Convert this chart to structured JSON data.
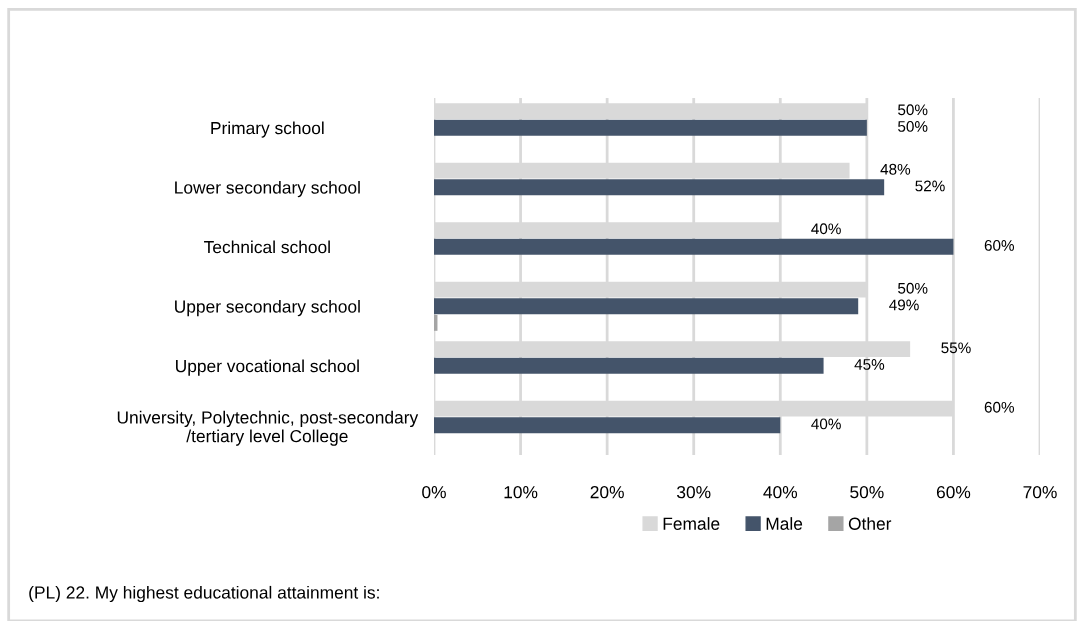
{
  "chart_data": {
    "type": "bar",
    "orientation": "horizontal",
    "categories": [
      "Primary school",
      "Lower secondary school",
      "Technical school",
      "Upper secondary school",
      "Upper vocational school",
      "University, Polytechnic, post-secondary\n/tertiary level College"
    ],
    "series": [
      {
        "name": "Female",
        "color": "#d9d9d9",
        "values": [
          50,
          48,
          40,
          50,
          55,
          60
        ],
        "value_labels": [
          "50%",
          "48%",
          "40%",
          "50%",
          "55%",
          "60%"
        ]
      },
      {
        "name": "Male",
        "color": "#44546a",
        "values": [
          50,
          52,
          60,
          49,
          45,
          40
        ],
        "value_labels": [
          "50%",
          "52%",
          "60%",
          "49%",
          "45%",
          "40%"
        ]
      },
      {
        "name": "Other",
        "color": "#a5a5a5",
        "values": [
          0,
          0,
          0,
          0.4,
          0,
          0
        ],
        "value_labels": [
          null,
          null,
          null,
          null,
          null,
          null
        ]
      }
    ],
    "xlim": [
      0,
      70
    ],
    "xticks": [
      {
        "value": 0,
        "label": "0%"
      },
      {
        "value": 10,
        "label": "10%"
      },
      {
        "value": 20,
        "label": "20%"
      },
      {
        "value": 30,
        "label": "30%"
      },
      {
        "value": 40,
        "label": "40%"
      },
      {
        "value": 50,
        "label": "50%"
      },
      {
        "value": 60,
        "label": "60%"
      },
      {
        "value": 70,
        "label": "70%"
      }
    ],
    "grid": "x",
    "legend": "bottom",
    "annotations": [
      "(PL) 22. My highest educational attainment is:"
    ]
  }
}
